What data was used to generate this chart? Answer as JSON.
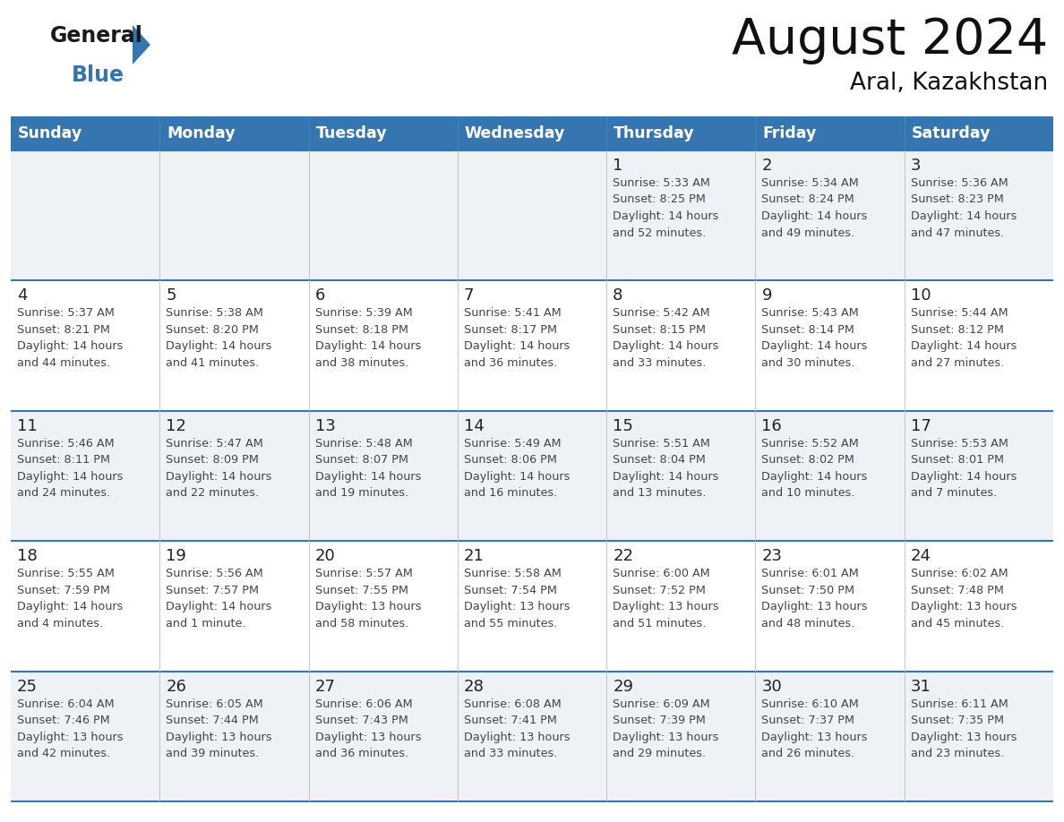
{
  "title": "August 2024",
  "subtitle": "Aral, Kazakhstan",
  "header_color": "#3676b0",
  "header_text_color": "#ffffff",
  "background_color": "#ffffff",
  "cell_bg_even": "#eef2f7",
  "cell_bg_odd": "#ffffff",
  "text_color": "#222222",
  "days_of_week": [
    "Sunday",
    "Monday",
    "Tuesday",
    "Wednesday",
    "Thursday",
    "Friday",
    "Saturday"
  ],
  "weeks": [
    [
      {
        "day": "",
        "info": ""
      },
      {
        "day": "",
        "info": ""
      },
      {
        "day": "",
        "info": ""
      },
      {
        "day": "",
        "info": ""
      },
      {
        "day": "1",
        "info": "Sunrise: 5:33 AM\nSunset: 8:25 PM\nDaylight: 14 hours\nand 52 minutes."
      },
      {
        "day": "2",
        "info": "Sunrise: 5:34 AM\nSunset: 8:24 PM\nDaylight: 14 hours\nand 49 minutes."
      },
      {
        "day": "3",
        "info": "Sunrise: 5:36 AM\nSunset: 8:23 PM\nDaylight: 14 hours\nand 47 minutes."
      }
    ],
    [
      {
        "day": "4",
        "info": "Sunrise: 5:37 AM\nSunset: 8:21 PM\nDaylight: 14 hours\nand 44 minutes."
      },
      {
        "day": "5",
        "info": "Sunrise: 5:38 AM\nSunset: 8:20 PM\nDaylight: 14 hours\nand 41 minutes."
      },
      {
        "day": "6",
        "info": "Sunrise: 5:39 AM\nSunset: 8:18 PM\nDaylight: 14 hours\nand 38 minutes."
      },
      {
        "day": "7",
        "info": "Sunrise: 5:41 AM\nSunset: 8:17 PM\nDaylight: 14 hours\nand 36 minutes."
      },
      {
        "day": "8",
        "info": "Sunrise: 5:42 AM\nSunset: 8:15 PM\nDaylight: 14 hours\nand 33 minutes."
      },
      {
        "day": "9",
        "info": "Sunrise: 5:43 AM\nSunset: 8:14 PM\nDaylight: 14 hours\nand 30 minutes."
      },
      {
        "day": "10",
        "info": "Sunrise: 5:44 AM\nSunset: 8:12 PM\nDaylight: 14 hours\nand 27 minutes."
      }
    ],
    [
      {
        "day": "11",
        "info": "Sunrise: 5:46 AM\nSunset: 8:11 PM\nDaylight: 14 hours\nand 24 minutes."
      },
      {
        "day": "12",
        "info": "Sunrise: 5:47 AM\nSunset: 8:09 PM\nDaylight: 14 hours\nand 22 minutes."
      },
      {
        "day": "13",
        "info": "Sunrise: 5:48 AM\nSunset: 8:07 PM\nDaylight: 14 hours\nand 19 minutes."
      },
      {
        "day": "14",
        "info": "Sunrise: 5:49 AM\nSunset: 8:06 PM\nDaylight: 14 hours\nand 16 minutes."
      },
      {
        "day": "15",
        "info": "Sunrise: 5:51 AM\nSunset: 8:04 PM\nDaylight: 14 hours\nand 13 minutes."
      },
      {
        "day": "16",
        "info": "Sunrise: 5:52 AM\nSunset: 8:02 PM\nDaylight: 14 hours\nand 10 minutes."
      },
      {
        "day": "17",
        "info": "Sunrise: 5:53 AM\nSunset: 8:01 PM\nDaylight: 14 hours\nand 7 minutes."
      }
    ],
    [
      {
        "day": "18",
        "info": "Sunrise: 5:55 AM\nSunset: 7:59 PM\nDaylight: 14 hours\nand 4 minutes."
      },
      {
        "day": "19",
        "info": "Sunrise: 5:56 AM\nSunset: 7:57 PM\nDaylight: 14 hours\nand 1 minute."
      },
      {
        "day": "20",
        "info": "Sunrise: 5:57 AM\nSunset: 7:55 PM\nDaylight: 13 hours\nand 58 minutes."
      },
      {
        "day": "21",
        "info": "Sunrise: 5:58 AM\nSunset: 7:54 PM\nDaylight: 13 hours\nand 55 minutes."
      },
      {
        "day": "22",
        "info": "Sunrise: 6:00 AM\nSunset: 7:52 PM\nDaylight: 13 hours\nand 51 minutes."
      },
      {
        "day": "23",
        "info": "Sunrise: 6:01 AM\nSunset: 7:50 PM\nDaylight: 13 hours\nand 48 minutes."
      },
      {
        "day": "24",
        "info": "Sunrise: 6:02 AM\nSunset: 7:48 PM\nDaylight: 13 hours\nand 45 minutes."
      }
    ],
    [
      {
        "day": "25",
        "info": "Sunrise: 6:04 AM\nSunset: 7:46 PM\nDaylight: 13 hours\nand 42 minutes."
      },
      {
        "day": "26",
        "info": "Sunrise: 6:05 AM\nSunset: 7:44 PM\nDaylight: 13 hours\nand 39 minutes."
      },
      {
        "day": "27",
        "info": "Sunrise: 6:06 AM\nSunset: 7:43 PM\nDaylight: 13 hours\nand 36 minutes."
      },
      {
        "day": "28",
        "info": "Sunrise: 6:08 AM\nSunset: 7:41 PM\nDaylight: 13 hours\nand 33 minutes."
      },
      {
        "day": "29",
        "info": "Sunrise: 6:09 AM\nSunset: 7:39 PM\nDaylight: 13 hours\nand 29 minutes."
      },
      {
        "day": "30",
        "info": "Sunrise: 6:10 AM\nSunset: 7:37 PM\nDaylight: 13 hours\nand 26 minutes."
      },
      {
        "day": "31",
        "info": "Sunrise: 6:11 AM\nSunset: 7:35 PM\nDaylight: 13 hours\nand 23 minutes."
      }
    ]
  ]
}
